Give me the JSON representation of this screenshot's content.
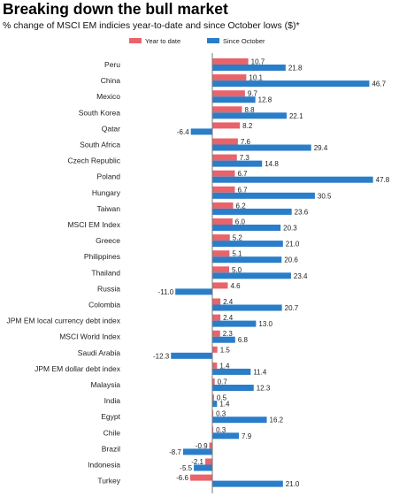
{
  "title": "Breaking down the bull market",
  "subtitle": "% change of MSCI EM indicies year-to-date and since October lows ($)*",
  "colors": {
    "ytd": "#e8636a",
    "since_oct": "#2a7dc9"
  },
  "chart_data": {
    "type": "bar",
    "orientation": "horizontal",
    "legend_position": "top",
    "grid": false,
    "categories": [
      "Peru",
      "China",
      "Mexico",
      "South Korea",
      "Qatar",
      "South Africa",
      "Czech Republic",
      "Poland",
      "Hungary",
      "Taiwan",
      "MSCI EM Index",
      "Greece",
      "Philippines",
      "Thailand",
      "Russia",
      "Colombia",
      "JPM EM local currency debt index",
      "MSCI World Index",
      "Saudi Arabia",
      "JPM EM dollar debt index",
      "Malaysia",
      "India",
      "Egypt",
      "Chile",
      "Brazil",
      "Indonesia",
      "Turkey"
    ],
    "series": [
      {
        "name": "Year to date",
        "values": [
          10.7,
          10.1,
          9.7,
          8.8,
          8.2,
          7.6,
          7.3,
          6.7,
          6.7,
          6.2,
          6.0,
          5.2,
          5.1,
          5.0,
          4.6,
          2.4,
          2.4,
          2.3,
          1.5,
          1.4,
          0.7,
          0.5,
          0.3,
          0.3,
          -0.9,
          -2.1,
          -6.6
        ]
      },
      {
        "name": "Since October",
        "values": [
          21.8,
          46.7,
          12.8,
          22.1,
          -6.4,
          29.4,
          14.8,
          47.8,
          30.5,
          23.6,
          20.3,
          21.0,
          20.6,
          23.4,
          -11.0,
          20.7,
          13.0,
          6.8,
          -12.3,
          11.4,
          12.3,
          1.4,
          16.2,
          7.9,
          -8.7,
          -5.5,
          21.0
        ]
      }
    ],
    "value_labels": [
      [
        "10.7",
        "10.1",
        "9.7",
        "8.8",
        "8.2",
        "7.6",
        "7.3",
        "6.7",
        "6.7",
        "6.2",
        "6.0",
        "5.2",
        "5.1",
        "5.0",
        "4.6",
        "2.4",
        "2.4",
        "2.3",
        "1.5",
        "1.4",
        "0.7",
        "0.5",
        "0.3",
        "0.3",
        "-0.9",
        "-2.1",
        "-6.6"
      ],
      [
        "21.8",
        "46.7",
        "12.8",
        "22.1",
        "-6.4",
        "29.4",
        "14.8",
        "47.8",
        "30.5",
        "23.6",
        "20.3",
        "21.0",
        "20.6",
        "23.4",
        "-11.0",
        "20.7",
        "13.0",
        "6.8",
        "-12.3",
        "11.4",
        "12.3",
        "1.4",
        "16.2",
        "7.9",
        "-8.7",
        "-5.5",
        "21.0"
      ]
    ]
  }
}
